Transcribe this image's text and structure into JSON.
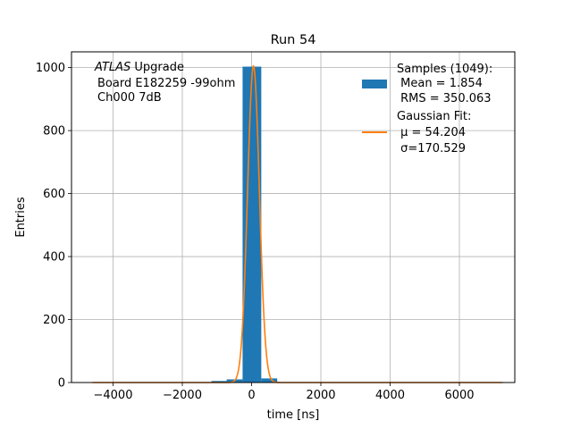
{
  "chart_data": {
    "type": "bar",
    "title": "Run 54",
    "xlabel": "time [ns]",
    "ylabel": "Entries",
    "xlim": [
      -5200,
      7600
    ],
    "ylim": [
      0,
      1050
    ],
    "xticks": [
      -4000,
      -2000,
      0,
      2000,
      4000,
      6000
    ],
    "xtick_labels": [
      "−4000",
      "−2000",
      "0",
      "2000",
      "4000",
      "6000"
    ],
    "yticks": [
      0,
      200,
      400,
      600,
      800,
      1000
    ],
    "ytick_labels": [
      "0",
      "200",
      "400",
      "600",
      "800",
      "1000"
    ],
    "grid": true,
    "legend_position": "top-right",
    "annotation": {
      "line1_italic": "ATLAS",
      "line1_rest": " Upgrade",
      "line2": "Board E182259 -99ohm",
      "line3": "Ch000 7dB"
    },
    "histogram": {
      "name": "Samples (1049):",
      "color": "#1f77b4",
      "bins": [
        {
          "x0": -1160,
          "x1": -720,
          "value": 5
        },
        {
          "x0": -720,
          "x1": -260,
          "value": 10
        },
        {
          "x0": -260,
          "x1": 280,
          "value": 1003
        },
        {
          "x0": 280,
          "x1": 740,
          "value": 13
        }
      ],
      "legend_lines": [
        "Samples (1049):",
        " Mean = 1.854",
        " RMS = 350.063"
      ]
    },
    "fit": {
      "name": "Gaussian Fit:",
      "color": "#ff7f0e",
      "mu": 54.204,
      "sigma": 170.529,
      "amplitude": 1005,
      "x_range": [
        -4600,
        7250
      ],
      "legend_lines": [
        "Gaussian Fit:",
        " μ = 54.204",
        " σ=170.529"
      ]
    }
  }
}
